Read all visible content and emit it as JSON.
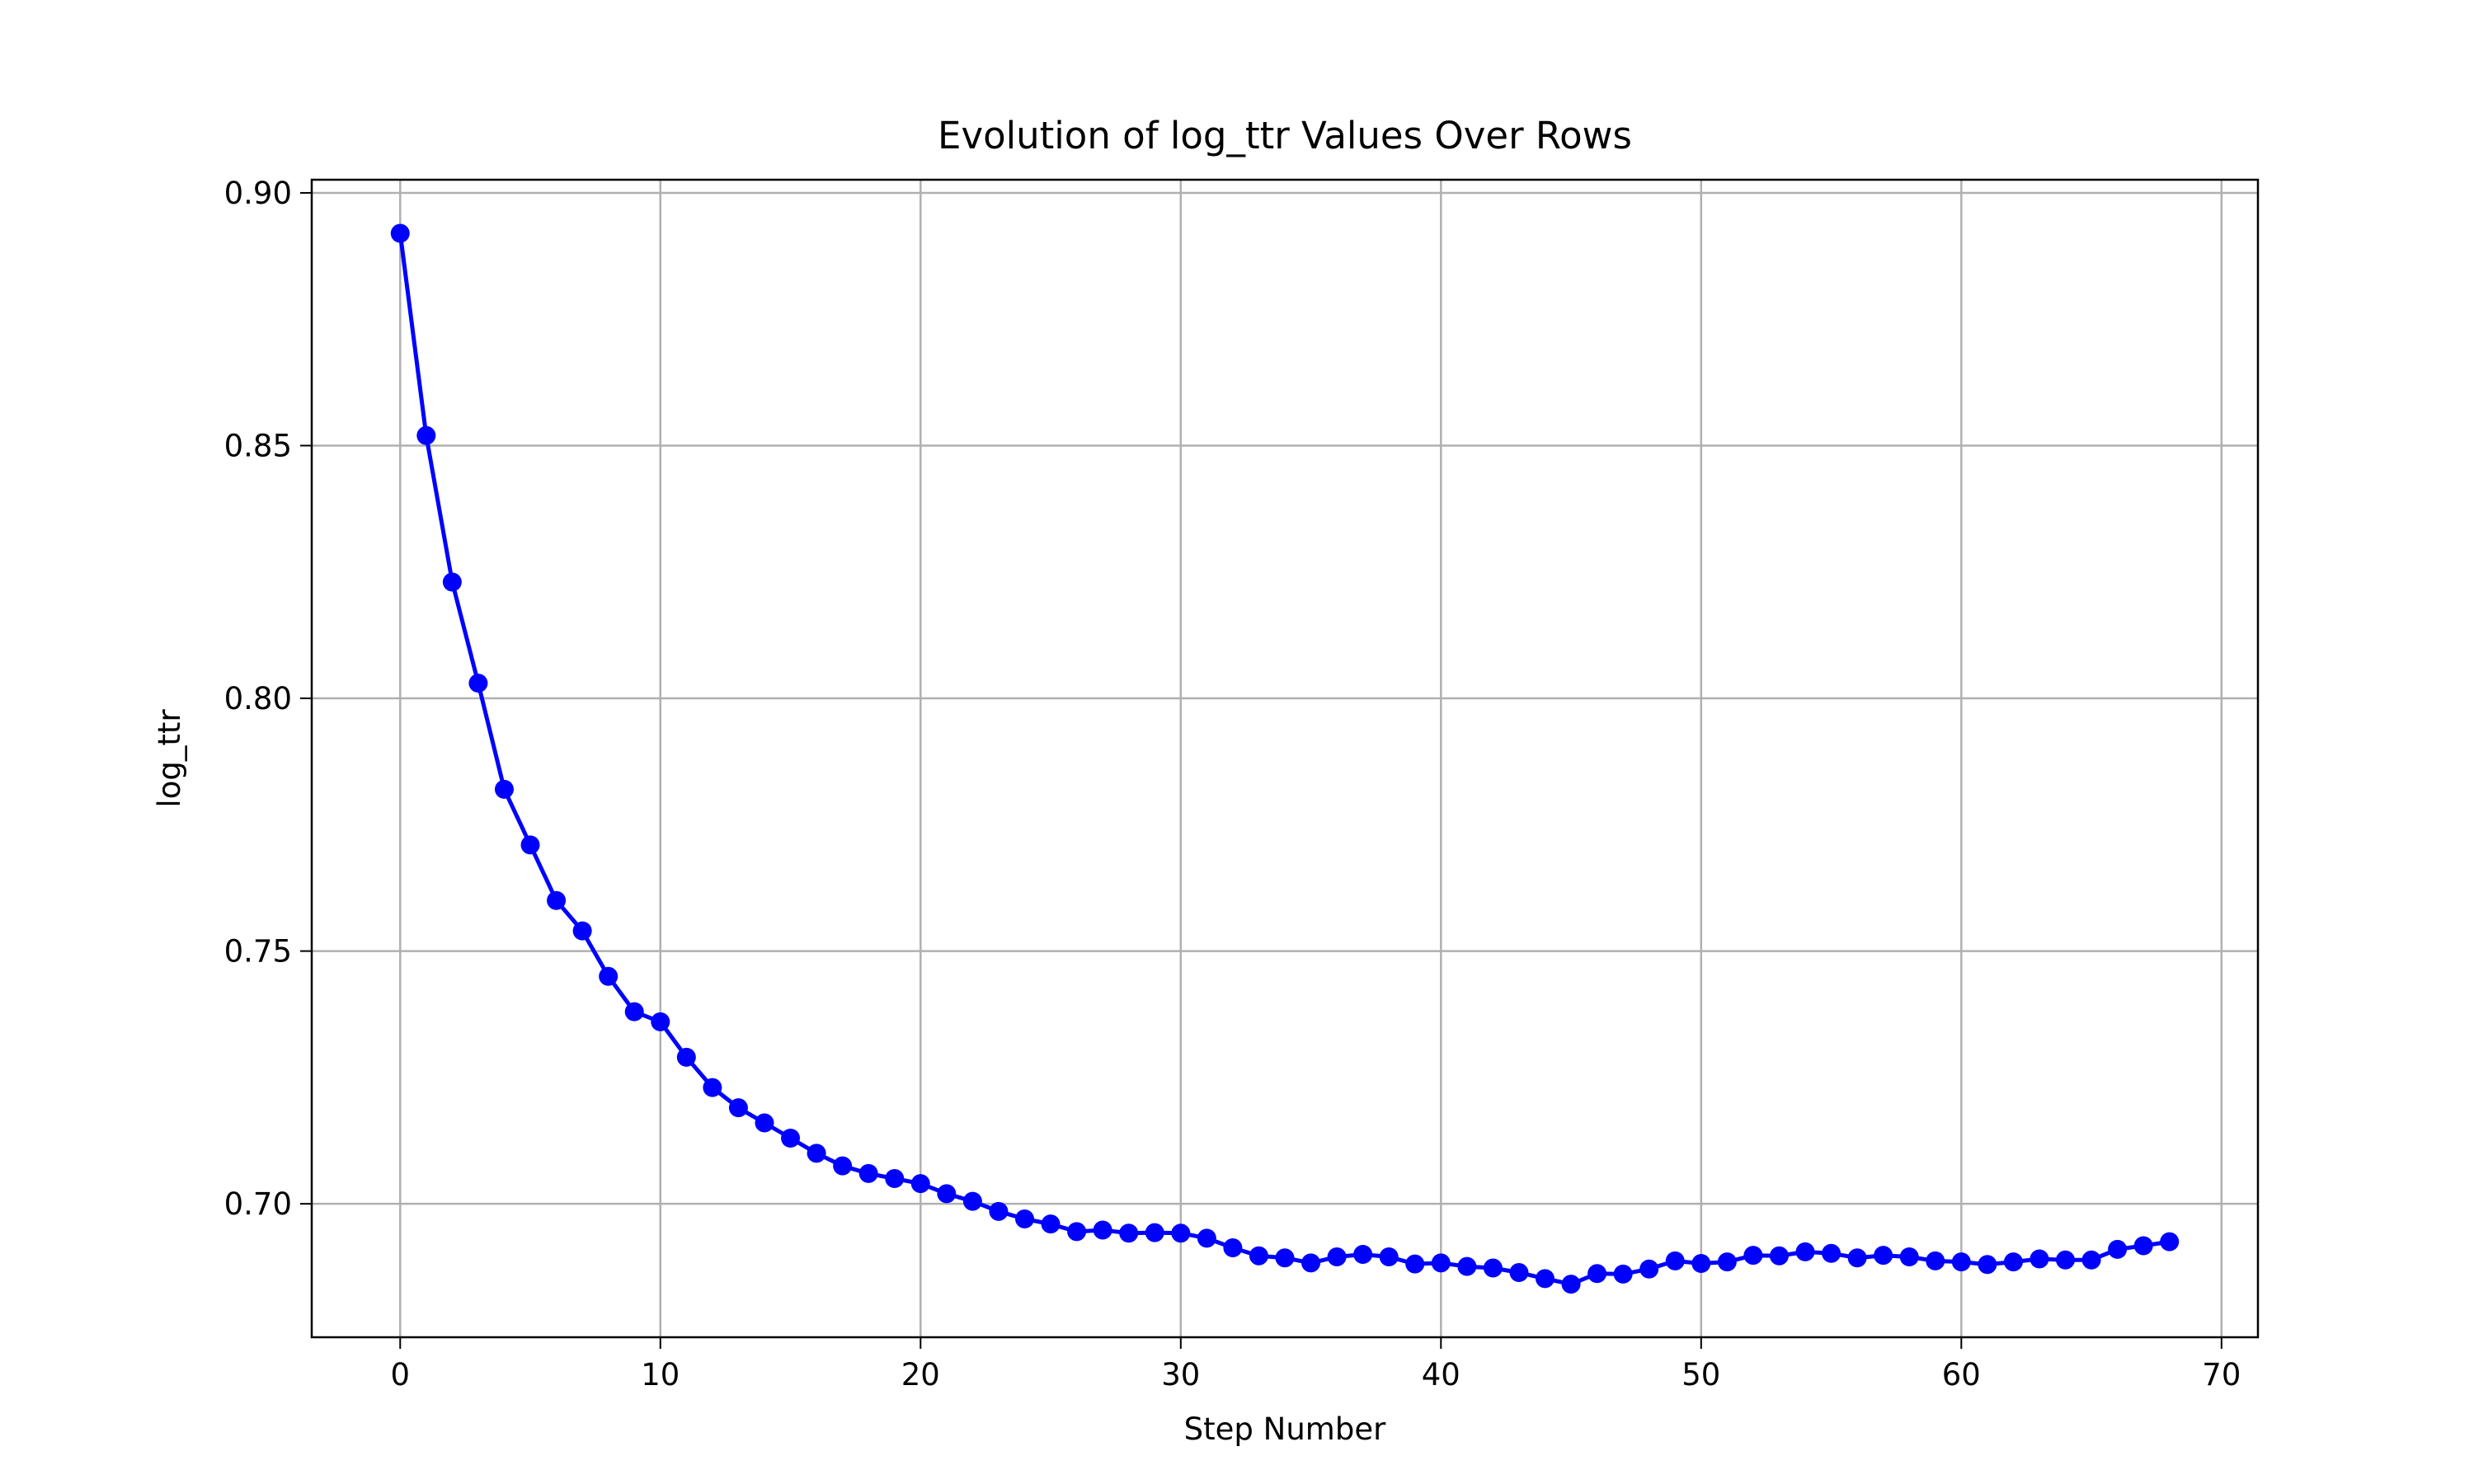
{
  "chart_data": {
    "type": "line",
    "title": "Evolution of log_ttr Values Over Rows",
    "xlabel": "Step Number",
    "ylabel": "log_ttr",
    "xlim": [
      -3.4,
      71.4
    ],
    "ylim": [
      0.6736,
      0.9026
    ],
    "xticks": [
      0,
      10,
      20,
      30,
      40,
      50,
      60,
      70
    ],
    "xtick_labels": [
      "0",
      "10",
      "20",
      "30",
      "40",
      "50",
      "60",
      "70"
    ],
    "yticks": [
      0.7,
      0.75,
      0.8,
      0.85,
      0.9
    ],
    "ytick_labels": [
      "0.70",
      "0.75",
      "0.80",
      "0.85",
      "0.90"
    ],
    "grid": true,
    "legend": false,
    "series": [
      {
        "color": "#0000ff",
        "marker": "circle",
        "x": [
          0,
          1,
          2,
          3,
          4,
          5,
          6,
          7,
          8,
          9,
          10,
          11,
          12,
          13,
          14,
          15,
          16,
          17,
          18,
          19,
          20,
          21,
          22,
          23,
          24,
          25,
          26,
          27,
          28,
          29,
          30,
          31,
          32,
          33,
          34,
          35,
          36,
          37,
          38,
          39,
          40,
          41,
          42,
          43,
          44,
          45,
          46,
          47,
          48,
          49,
          50,
          51,
          52,
          53,
          54,
          55,
          56,
          57,
          58,
          59,
          60,
          61,
          62,
          63,
          64,
          65,
          66,
          67,
          68
        ],
        "values": [
          0.892,
          0.852,
          0.823,
          0.803,
          0.782,
          0.771,
          0.76,
          0.754,
          0.745,
          0.738,
          0.736,
          0.729,
          0.723,
          0.719,
          0.716,
          0.713,
          0.71,
          0.7075,
          0.706,
          0.705,
          0.704,
          0.702,
          0.7005,
          0.6985,
          0.697,
          0.696,
          0.6945,
          0.6948,
          0.6942,
          0.6943,
          0.6942,
          0.6932,
          0.6913,
          0.6897,
          0.6893,
          0.6883,
          0.6895,
          0.69,
          0.6895,
          0.6881,
          0.6883,
          0.6876,
          0.6873,
          0.6864,
          0.6852,
          0.6841,
          0.6862,
          0.6861,
          0.6871,
          0.6887,
          0.6882,
          0.6885,
          0.6898,
          0.6897,
          0.6905,
          0.6902,
          0.6893,
          0.6898,
          0.6895,
          0.6887,
          0.6885,
          0.688,
          0.6885,
          0.6891,
          0.6889,
          0.6889,
          0.691,
          0.6917,
          0.6925
        ]
      }
    ]
  }
}
